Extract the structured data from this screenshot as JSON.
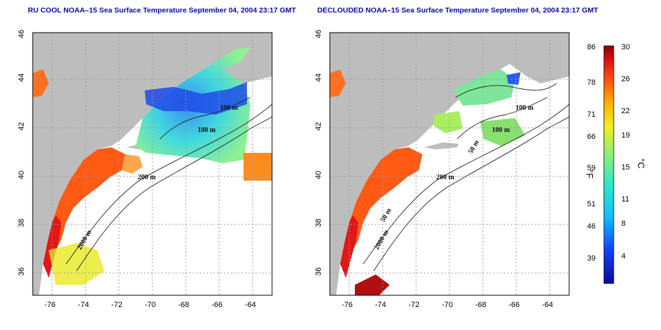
{
  "panels": [
    {
      "title": "RU COOL NOAA–15 Sea Surface Temperature September 04, 2004 23:17 GMT"
    },
    {
      "title": "DECLOUDED NOAA–15 Sea Surface Temperature September 04, 2004 23:17 GMT"
    }
  ],
  "axes": {
    "lat_ticks": [
      "36",
      "38",
      "40",
      "42",
      "44",
      "46"
    ],
    "lon_ticks": [
      "-76",
      "-74",
      "-72",
      "-70",
      "-68",
      "-66",
      "-64"
    ],
    "lon_range": [
      -77.2,
      -62.8
    ],
    "lat_range": [
      35,
      46
    ]
  },
  "contours": {
    "labels": [
      "100 m",
      "100 m",
      "50 m",
      "200 m",
      "50 m",
      "2000 m"
    ]
  },
  "colorbar": {
    "fahrenheit_ticks": [
      "86",
      "78",
      "71",
      "66",
      "59",
      "51",
      "46",
      "39"
    ],
    "celsius_ticks": [
      "30",
      "26",
      "22",
      "19",
      "15",
      "11",
      "8",
      "4"
    ],
    "unit_f": "°F",
    "unit_c": "°C"
  },
  "colors": {
    "land": "#bdbdbd",
    "title_text": "#0a0aa8",
    "grid": "#9a9a9a"
  }
}
